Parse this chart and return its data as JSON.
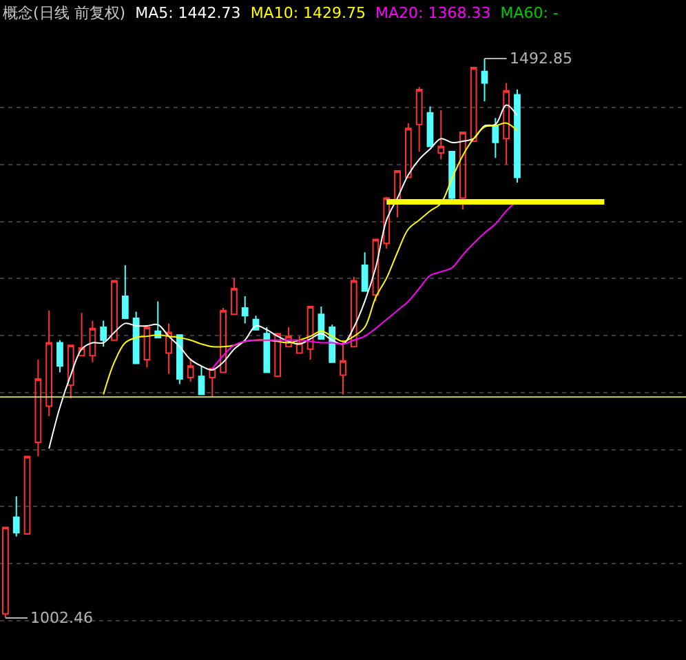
{
  "chart_data": {
    "type": "candlestick",
    "title": "概念(日线 前复权)",
    "categories": [
      null,
      null,
      null,
      null,
      null,
      null,
      null,
      null,
      null,
      null,
      null,
      null,
      null,
      null,
      null,
      null,
      null,
      null,
      null,
      null,
      null,
      null,
      null,
      null,
      null,
      null,
      null,
      null,
      null,
      null,
      null,
      null,
      null,
      null,
      null,
      null,
      null,
      null,
      null,
      null,
      null,
      null,
      null,
      null,
      null,
      null,
      null,
      null,
      null,
      null,
      null,
      null,
      null,
      null,
      null,
      null,
      null,
      null,
      null,
      null,
      null,
      null,
      null
    ],
    "ohlc": [
      [
        1005.9,
        1081.8,
        1002.46,
        1081.8
      ],
      [
        1090.8,
        1109.0,
        1073.9,
        1077.2
      ],
      [
        1076.1,
        1144.1,
        1076.1,
        1144.1
      ],
      [
        1156.5,
        1229.0,
        1144.1,
        1212.0
      ],
      [
        1188.2,
        1272.0,
        1179.2,
        1243.7
      ],
      [
        1243.7,
        1246.0,
        1217.7,
        1223.3
      ],
      [
        1206.4,
        1241.5,
        1195.0,
        1241.5
      ],
      [
        1232.4,
        1269.8,
        1232.4,
        1239.2
      ],
      [
        1232.4,
        1263.0,
        1226.7,
        1256.2
      ],
      [
        1257.3,
        1263.0,
        1240.3,
        1246.0
      ],
      [
        1246.0,
        1298.1,
        1246.0,
        1298.1
      ],
      [
        1284.5,
        1311.7,
        1265.2,
        1265.2
      ],
      [
        1265.2,
        1270.9,
        1225.6,
        1225.6
      ],
      [
        1229.0,
        1257.3,
        1222.2,
        1257.3
      ],
      [
        1253.9,
        1280.0,
        1248.3,
        1248.3
      ],
      [
        1234.7,
        1260.7,
        1216.5,
        1252.8
      ],
      [
        1250.5,
        1250.5,
        1207.5,
        1212.0
      ],
      [
        1213.2,
        1230.1,
        1209.8,
        1223.3
      ],
      [
        1214.3,
        1223.3,
        1198.4,
        1198.4
      ],
      [
        1213.2,
        1221.1,
        1196.2,
        1221.1
      ],
      [
        1217.7,
        1274.3,
        1217.7,
        1272.0
      ],
      [
        1268.6,
        1300.4,
        1268.6,
        1291.3
      ],
      [
        1274.3,
        1284.5,
        1260.7,
        1267.5
      ],
      [
        1264.1,
        1267.5,
        1255.1,
        1255.1
      ],
      [
        1251.7,
        1257.3,
        1217.7,
        1217.7
      ],
      [
        1214.3,
        1251.7,
        1214.3,
        1251.7
      ],
      [
        1240.3,
        1257.3,
        1240.3,
        1249.4
      ],
      [
        1234.7,
        1249.4,
        1234.7,
        1243.7
      ],
      [
        1238.1,
        1275.4,
        1229.0,
        1275.4
      ],
      [
        1268.6,
        1275.4,
        1247.1,
        1247.1
      ],
      [
        1257.3,
        1259.6,
        1226.7,
        1226.7
      ],
      [
        1215.4,
        1246.0,
        1198.4,
        1227.9
      ],
      [
        1240.3,
        1301.5,
        1240.3,
        1298.1
      ],
      [
        1311.7,
        1323.0,
        1289.0,
        1289.0
      ],
      [
        1285.6,
        1334.3,
        1280.0,
        1334.3
      ],
      [
        1330.9,
        1371.7,
        1326.4,
        1370.6
      ],
      [
        1368.3,
        1394.4,
        1353.6,
        1394.4
      ],
      [
        1388.7,
        1436.3,
        1388.7,
        1431.7
      ],
      [
        1435.1,
        1468.0,
        1411.3,
        1465.7
      ],
      [
        1445.3,
        1451.0,
        1415.9,
        1415.9
      ],
      [
        1410.2,
        1447.6,
        1404.5,
        1415.9
      ],
      [
        1411.3,
        1411.3,
        1366.0,
        1370.6
      ],
      [
        1370.6,
        1428.3,
        1360.4,
        1428.3
      ],
      [
        1420.4,
        1485.0,
        1420.4,
        1485.0
      ],
      [
        1481.6,
        1492.85,
        1455.5,
        1471.4
      ],
      [
        1434.0,
        1440.8,
        1405.7,
        1419.3
      ],
      [
        1422.7,
        1471.4,
        1400.0,
        1464.6
      ],
      [
        1461.2,
        1465.7,
        1384.2,
        1388.7
      ],
      null,
      null,
      null,
      null,
      null,
      null,
      null,
      null,
      null,
      null,
      null,
      null,
      null,
      null,
      null
    ],
    "series": [
      {
        "name": "MA5: 1442.73",
        "color": "#ffffff",
        "type": "line",
        "values": [
          null,
          null,
          null,
          null,
          1150.9,
          1187.1,
          1215.4,
          1238.1,
          1243.7,
          1243.7,
          1252.8,
          1260.7,
          1258.5,
          1258.5,
          1259.6,
          1249.4,
          1240.3,
          1229.0,
          1223.3,
          1219.9,
          1226.7,
          1238.1,
          1246.0,
          1258.5,
          1255.1,
          1249.4,
          1244.9,
          1242.6,
          1247.1,
          1251.7,
          1246.0,
          1242.6,
          1257.3,
          1280.0,
          1309.4,
          1351.3,
          1370.6,
          1391.0,
          1404.5,
          1413.6,
          1422.7,
          1419.3,
          1420.4,
          1422.7,
          1434.0,
          1435.1,
          1452.1,
          1442.73,
          null,
          null,
          null,
          null,
          null,
          null,
          null,
          null,
          null,
          null,
          null,
          null,
          null,
          null,
          null
        ]
      },
      {
        "name": "MA10: 1429.75",
        "color": "#ffff00",
        "type": "line",
        "values": [
          null,
          null,
          null,
          null,
          null,
          null,
          null,
          null,
          null,
          1198.4,
          1226.7,
          1243.7,
          1248.3,
          1249.4,
          1250.5,
          1249.4,
          1248.3,
          1246.0,
          1242.6,
          1240.3,
          1240.3,
          1241.5,
          1244.9,
          1246.0,
          1246.0,
          1244.9,
          1243.7,
          1246.0,
          1249.4,
          1253.9,
          1249.4,
          1244.9,
          1249.4,
          1257.3,
          1283.4,
          1300.4,
          1323.0,
          1343.4,
          1351.3,
          1359.3,
          1366.0,
          1387.6,
          1407.9,
          1422.7,
          1432.9,
          1434.0,
          1436.3,
          1429.75,
          null,
          null,
          null,
          null,
          null,
          null,
          null,
          null,
          null,
          null,
          null,
          null,
          null,
          null,
          null
        ]
      },
      {
        "name": "MA20: 1368.33",
        "color": "#ff00ff",
        "type": "line",
        "values": [
          null,
          null,
          null,
          null,
          null,
          null,
          null,
          null,
          null,
          null,
          null,
          null,
          null,
          null,
          null,
          null,
          null,
          null,
          null,
          1221.1,
          1232.4,
          1241.5,
          1244.9,
          1246.0,
          1246.0,
          1246.0,
          1246.0,
          1246.0,
          1244.9,
          1243.7,
          1243.7,
          1242.6,
          1246.0,
          1249.4,
          1256.2,
          1264.1,
          1272.0,
          1280.0,
          1291.3,
          1302.6,
          1306.0,
          1309.4,
          1320.7,
          1330.9,
          1340.0,
          1347.9,
          1359.3,
          1368.33,
          null,
          null,
          null,
          null,
          null,
          null,
          null,
          null,
          null,
          null,
          null,
          null,
          null,
          null,
          null
        ]
      },
      {
        "name": "MA60: -",
        "color": "#00c800",
        "type": "line",
        "values": [
          null,
          null,
          null,
          null,
          null,
          null,
          null,
          null,
          null,
          null,
          null,
          null,
          null,
          null,
          null,
          null,
          null,
          null,
          null,
          null,
          null,
          null,
          null,
          null,
          null,
          null,
          null,
          null,
          null,
          null,
          null,
          null,
          null,
          null,
          null,
          null,
          null,
          null,
          null,
          null,
          null,
          null,
          null,
          null,
          null,
          null,
          null,
          null,
          null,
          null,
          null,
          null,
          null,
          null,
          null,
          null,
          null,
          null,
          null,
          null,
          null,
          null,
          null
        ]
      },
      {
        "color": "#ffff00",
        "type": "line",
        "values": [
          null,
          null,
          null,
          null,
          null,
          null,
          null,
          null,
          null,
          null,
          null,
          null,
          null,
          null,
          null,
          null,
          null,
          null,
          null,
          null,
          null,
          null,
          null,
          null,
          null,
          null,
          null,
          null,
          null,
          null,
          null,
          null,
          null,
          null,
          null,
          1367.2,
          1367.2,
          1367.2,
          1367.2,
          1367.2,
          1367.2,
          1367.2,
          1367.2,
          1367.2,
          1367.2,
          1367.2,
          1367.2,
          1367.2,
          1367.2,
          1367.2,
          1367.2,
          1367.2,
          1367.2,
          1367.2,
          1367.2,
          1367.2,
          null,
          null,
          null,
          null,
          null,
          null,
          null
        ]
      }
    ],
    "annotations": [
      "1492.85",
      "1002.46"
    ],
    "ref_lines": [
      {
        "axis": "y",
        "value": 1196.2,
        "color": "#d0d08a"
      }
    ],
    "yticks": [
      {
        "value": 1000,
        "label": null
      },
      {
        "value": 1050,
        "label": null
      },
      {
        "value": 1100,
        "label": null
      },
      {
        "value": 1150,
        "label": null
      },
      {
        "value": 1200,
        "label": null
      },
      {
        "value": 1250,
        "label": null
      },
      {
        "value": 1300,
        "label": null
      },
      {
        "value": 1350,
        "label": null
      },
      {
        "value": 1400,
        "label": null
      },
      {
        "value": 1450,
        "label": null
      }
    ],
    "grid": "y"
  }
}
